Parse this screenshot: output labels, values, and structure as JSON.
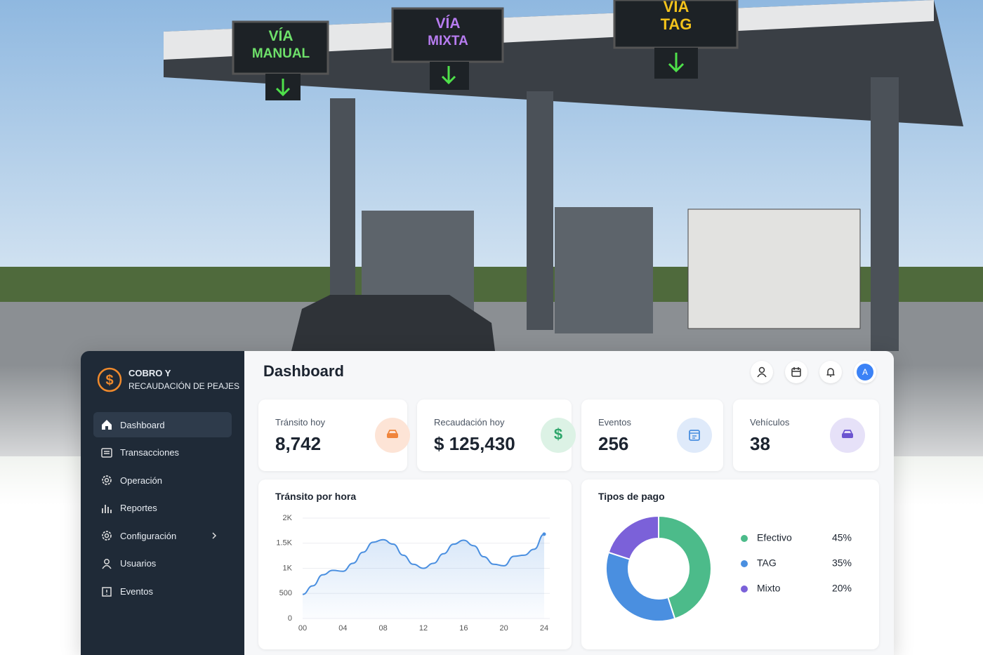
{
  "scene": {
    "signs": [
      [
        "VÍA",
        "MANUAL"
      ],
      [
        "VÍA",
        "MIXTA"
      ],
      [
        "VÍA",
        "TAG"
      ]
    ]
  },
  "sidebar": {
    "brand": [
      "COBRO Y",
      "RECAUDACIÓN DE PEAJES"
    ],
    "nav": [
      "Dashboard",
      "Transacciones",
      "Operación",
      "Reportes",
      "Configuración",
      "Usuarios",
      "Eventos"
    ]
  },
  "header": {
    "title": "Dashboard",
    "avatar": "A"
  },
  "stats": [
    {
      "label": "Tránsito hoy",
      "value": "8,742"
    },
    {
      "label": "Recaudación hoy",
      "value": "$ 125,430"
    },
    {
      "label": "Eventos",
      "value": "256"
    },
    {
      "label": "Vehículos",
      "value": "38"
    }
  ],
  "chart_data": [
    {
      "type": "line",
      "title": "Tránsito por hora",
      "color": "#4a8fe0",
      "x": [
        0,
        1,
        2,
        3,
        4,
        5,
        6,
        7,
        8,
        9,
        10,
        11,
        12,
        13,
        14,
        15,
        16,
        17,
        18,
        19,
        20,
        21,
        22,
        23,
        24
      ],
      "values": [
        480,
        650,
        870,
        960,
        940,
        1100,
        1320,
        1520,
        1570,
        1480,
        1260,
        1080,
        1000,
        1100,
        1290,
        1480,
        1560,
        1450,
        1230,
        1080,
        1050,
        1240,
        1260,
        1380,
        1680
      ],
      "xlim": [
        0,
        24
      ],
      "xticks": [
        {
          "value": 0,
          "label": "00"
        },
        {
          "value": 4,
          "label": "04"
        },
        {
          "value": 8,
          "label": "08"
        },
        {
          "value": 12,
          "label": "12"
        },
        {
          "value": 16,
          "label": "16"
        },
        {
          "value": 20,
          "label": "20"
        },
        {
          "value": 24,
          "label": "24"
        }
      ],
      "ylim": [
        0,
        2000
      ],
      "yticks": [
        0,
        500,
        {
          "value": 1000,
          "label": "1K"
        },
        {
          "value": 1500,
          "label": "1.5K"
        },
        {
          "value": 2000,
          "label": "2K"
        }
      ],
      "grid": true
    },
    {
      "type": "pie",
      "title": "Tipos de pago",
      "categories": [
        "Efectivo",
        "TAG",
        "Mixto"
      ],
      "values": [
        45,
        35,
        20
      ],
      "value_labels": [
        "45%",
        "35%",
        "20%"
      ],
      "colors": [
        "#4cbb8a",
        "#4a8fe0",
        "#7b61d9"
      ]
    }
  ]
}
